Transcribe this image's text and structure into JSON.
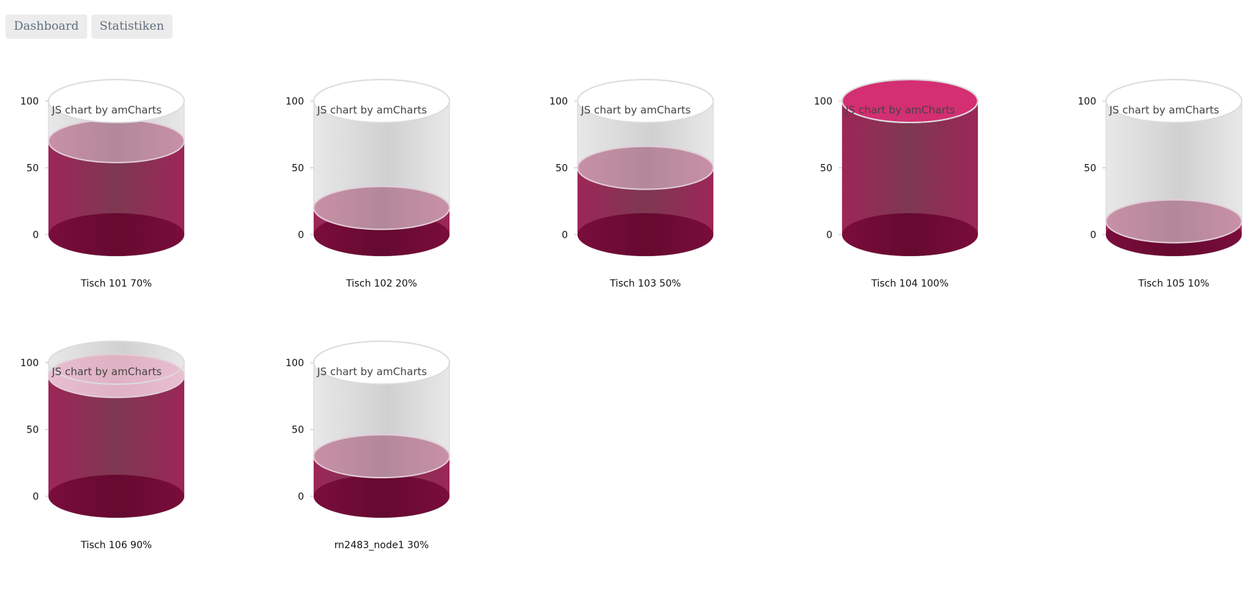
{
  "nav": {
    "items": [
      {
        "label": "Dashboard"
      },
      {
        "label": "Statistiken"
      }
    ]
  },
  "watermark": "JS chart by amCharts",
  "colors": {
    "fill_dark": "#7a0c3b",
    "fill_mid": "#9c2658",
    "fill_top": "#c890a6",
    "fill_top_full": "#d42f72",
    "fill_top_high": "#e8bed0",
    "glass_light": "#e4e4e4",
    "glass_dark": "#c8c8c8"
  },
  "chart_data": [
    {
      "type": "bar",
      "subtype": "cylinder-gauge",
      "label": "Tisch 101 70%",
      "value": 70,
      "ylim": [
        0,
        100
      ],
      "yticks": [
        "100",
        "50",
        "0"
      ]
    },
    {
      "type": "bar",
      "subtype": "cylinder-gauge",
      "label": "Tisch 102 20%",
      "value": 20,
      "ylim": [
        0,
        100
      ],
      "yticks": [
        "100",
        "50",
        "0"
      ]
    },
    {
      "type": "bar",
      "subtype": "cylinder-gauge",
      "label": "Tisch 103 50%",
      "value": 50,
      "ylim": [
        0,
        100
      ],
      "yticks": [
        "100",
        "50",
        "0"
      ]
    },
    {
      "type": "bar",
      "subtype": "cylinder-gauge",
      "label": "Tisch 104 100%",
      "value": 100,
      "ylim": [
        0,
        100
      ],
      "yticks": [
        "100",
        "50",
        "0"
      ]
    },
    {
      "type": "bar",
      "subtype": "cylinder-gauge",
      "label": "Tisch 105 10%",
      "value": 10,
      "ylim": [
        0,
        100
      ],
      "yticks": [
        "100",
        "50",
        "0"
      ]
    },
    {
      "type": "bar",
      "subtype": "cylinder-gauge",
      "label": "Tisch 106 90%",
      "value": 90,
      "ylim": [
        0,
        100
      ],
      "yticks": [
        "100",
        "50",
        "0"
      ]
    },
    {
      "type": "bar",
      "subtype": "cylinder-gauge",
      "label": "rn2483_node1 30%",
      "value": 30,
      "ylim": [
        0,
        100
      ],
      "yticks": [
        "100",
        "50",
        "0"
      ]
    }
  ]
}
